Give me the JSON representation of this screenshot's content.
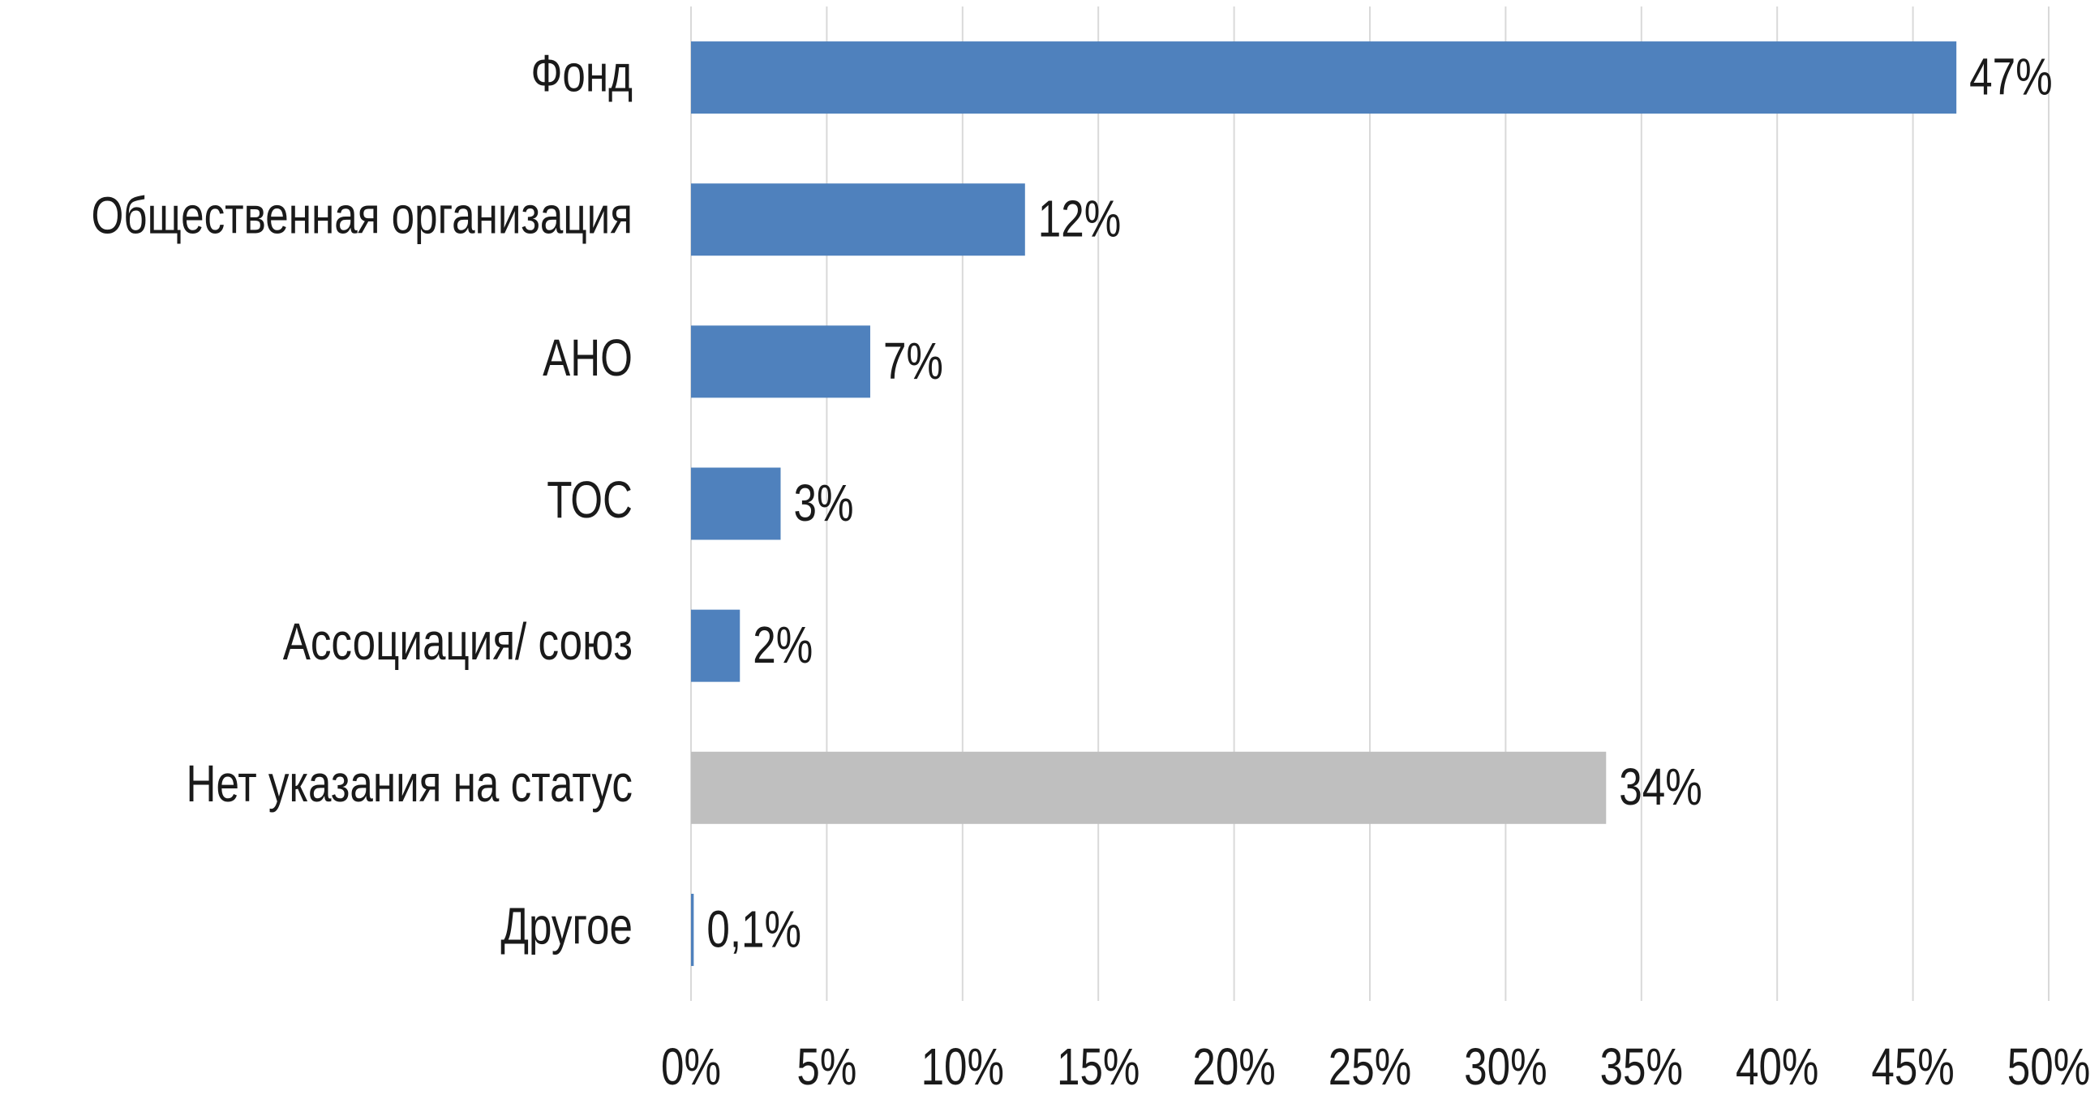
{
  "chart_data": {
    "type": "bar",
    "orientation": "horizontal",
    "categories": [
      "Фонд",
      "Общественная организация",
      "АНО",
      "ТОС",
      "Ассоциация/ союз",
      "Нет указания на статус",
      "Другое"
    ],
    "values": [
      46.6,
      12.3,
      6.6,
      3.3,
      1.8,
      33.7,
      0.1
    ],
    "value_labels": [
      "47%",
      "12%",
      "7%",
      "3%",
      "2%",
      "34%",
      "0,1%"
    ],
    "colors": [
      "#4f81bd",
      "#4f81bd",
      "#4f81bd",
      "#4f81bd",
      "#4f81bd",
      "#bfbfbf",
      "#4f81bd"
    ],
    "xlim": [
      0,
      50
    ],
    "xticks": [
      {
        "value": 0,
        "label": "0%"
      },
      {
        "value": 5,
        "label": "5%"
      },
      {
        "value": 10,
        "label": "10%"
      },
      {
        "value": 15,
        "label": "15%"
      },
      {
        "value": 20,
        "label": "20%"
      },
      {
        "value": 25,
        "label": "25%"
      },
      {
        "value": 30,
        "label": "30%"
      },
      {
        "value": 35,
        "label": "35%"
      },
      {
        "value": 40,
        "label": "40%"
      },
      {
        "value": 45,
        "label": "45%"
      },
      {
        "value": 50,
        "label": "50%"
      }
    ],
    "grid": true
  }
}
